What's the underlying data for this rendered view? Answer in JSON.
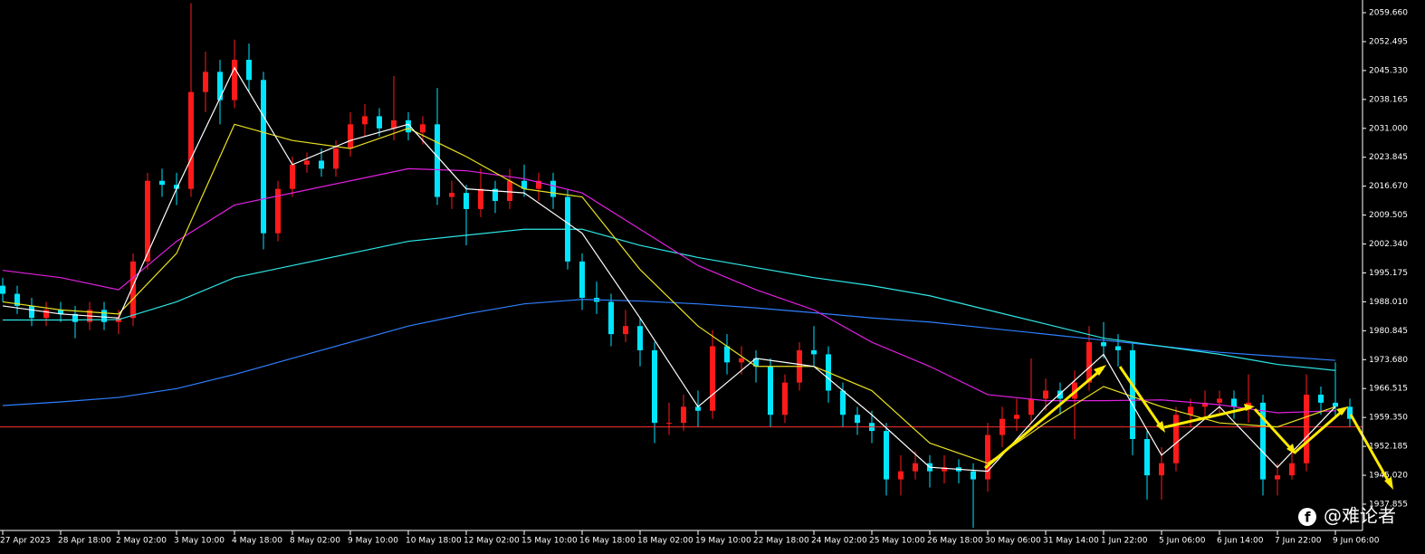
{
  "chart_data": {
    "type": "candlestick",
    "up_color": "#ff1a1a",
    "down_color": "#00e5ff",
    "level_color": "#ff3030",
    "ylim": [
      1931.34,
      2062.81
    ],
    "yticks": [
      {
        "value": 2059.66,
        "label": "2059.660"
      },
      {
        "value": 2052.495,
        "label": "2052.495"
      },
      {
        "value": 2045.33,
        "label": "2045.330"
      },
      {
        "value": 2038.165,
        "label": "2038.165"
      },
      {
        "value": 2031,
        "label": "2031.000"
      },
      {
        "value": 2023.845,
        "label": "2023.845"
      },
      {
        "value": 2016.67,
        "label": "2016.670"
      },
      {
        "value": 2009.505,
        "label": "2009.505"
      },
      {
        "value": 2002.34,
        "label": "2002.340"
      },
      {
        "value": 1995.175,
        "label": "1995.175"
      },
      {
        "value": 1988.01,
        "label": "1988.010"
      },
      {
        "value": 1980.845,
        "label": "1980.845"
      },
      {
        "value": 1973.68,
        "label": "1973.680"
      },
      {
        "value": 1966.515,
        "label": "1966.515"
      },
      {
        "value": 1959.35,
        "label": "1959.350"
      },
      {
        "value": 1952.185,
        "label": "1952.185"
      },
      {
        "value": 1945.02,
        "label": "1945.020"
      },
      {
        "value": 1937.855,
        "label": "1937.855"
      }
    ],
    "xticks": [
      {
        "value": 0,
        "label": "27 Apr 2023"
      },
      {
        "value": 4,
        "label": "28 Apr 18:00"
      },
      {
        "value": 8,
        "label": "2 May 02:00"
      },
      {
        "value": 12,
        "label": "3 May 10:00"
      },
      {
        "value": 16,
        "label": "4 May 18:00"
      },
      {
        "value": 20,
        "label": "8 May 02:00"
      },
      {
        "value": 24,
        "label": "9 May 10:00"
      },
      {
        "value": 28,
        "label": "10 May 18:00"
      },
      {
        "value": 32,
        "label": "12 May 02:00"
      },
      {
        "value": 36,
        "label": "15 May 10:00"
      },
      {
        "value": 40,
        "label": "16 May 18:00"
      },
      {
        "value": 44,
        "label": "18 May 02:00"
      },
      {
        "value": 48,
        "label": "19 May 10:00"
      },
      {
        "value": 52,
        "label": "22 May 18:00"
      },
      {
        "value": 56,
        "label": "24 May 02:00"
      },
      {
        "value": 60,
        "label": "25 May 10:00"
      },
      {
        "value": 64,
        "label": "26 May 18:00"
      },
      {
        "value": 68,
        "label": "30 May 06:00"
      },
      {
        "value": 72,
        "label": "31 May 14:00"
      },
      {
        "value": 76,
        "label": "1 Jun 22:00"
      },
      {
        "value": 80,
        "label": "5 Jun 06:00"
      },
      {
        "value": 84,
        "label": "6 Jun 14:00"
      },
      {
        "value": 88,
        "label": "7 Jun 22:00"
      },
      {
        "value": 92,
        "label": "9 Jun 06:00"
      }
    ],
    "open": [
      1992,
      1990,
      1987,
      1984,
      1986,
      1985,
      1983,
      1986,
      1983,
      1984,
      1998,
      2018,
      2017,
      2016,
      2040,
      2045,
      2038,
      2048,
      2043,
      2005,
      2016,
      2022,
      2023,
      2021,
      2026,
      2032,
      2034,
      2031,
      2033,
      2030,
      2032,
      2014,
      2015,
      2011,
      2016,
      2013,
      2018,
      2016,
      2018,
      2014,
      1998,
      1989,
      1988,
      1980,
      1982,
      1976,
      1958,
      1958,
      1962,
      1961,
      1977,
      1973,
      1974,
      1972,
      1960,
      1968,
      1976,
      1975,
      1966,
      1960,
      1958,
      1956,
      1944,
      1946,
      1948,
      1946,
      1947,
      1946,
      1944,
      1955,
      1959,
      1960,
      1964,
      1966,
      1964,
      1968,
      1978,
      1977,
      1976,
      1954,
      1945,
      1948,
      1960,
      1962,
      1963,
      1964,
      1962,
      1963,
      1944,
      1945,
      1948,
      1965,
      1963,
      1962
    ],
    "high": [
      1994,
      1992,
      1989,
      1988,
      1988,
      1987,
      1988,
      1988,
      1986,
      2000,
      2020,
      2021,
      2020,
      2062,
      2050,
      2048,
      2053,
      2052,
      2045,
      2018,
      2024,
      2025,
      2026,
      2028,
      2035,
      2037,
      2036,
      2044,
      2035,
      2034,
      2041,
      2018,
      2017,
      2021,
      2018,
      2021,
      2022,
      2020,
      2020,
      2016,
      2000,
      1993,
      1990,
      1986,
      1984,
      1978,
      1963,
      1965,
      1966,
      1981,
      1980,
      1977,
      1976,
      1974,
      1970,
      1978,
      1982,
      1977,
      1968,
      1962,
      1961,
      1958,
      1950,
      1951,
      1950,
      1950,
      1949,
      1948,
      1958,
      1962,
      1964,
      1974,
      1969,
      1968,
      1971,
      1982,
      1983,
      1980,
      1978,
      1956,
      1952,
      1962,
      1964,
      1966,
      1966,
      1966,
      1970,
      1965,
      1948,
      1951,
      1970,
      1967,
      1973,
      1964
    ],
    "low": [
      1988,
      1985,
      1982,
      1982,
      1983,
      1979,
      1981,
      1981,
      1980,
      1982,
      1996,
      2014,
      2012,
      2014,
      2035,
      2032,
      2036,
      2040,
      2001,
      2003,
      2014,
      2020,
      2019,
      2019,
      2024,
      2029,
      2029,
      2028,
      2028,
      2027,
      2012,
      2011,
      2002,
      2009,
      2010,
      2011,
      2014,
      2013,
      2011,
      1996,
      1986,
      1985,
      1977,
      1978,
      1972,
      1953,
      1955,
      1956,
      1957,
      1959,
      1970,
      1970,
      1968,
      1957,
      1958,
      1966,
      1972,
      1963,
      1957,
      1955,
      1953,
      1940,
      1940,
      1944,
      1942,
      1943,
      1943,
      1932,
      1941,
      1952,
      1956,
      1958,
      1961,
      1960,
      1954,
      1966,
      1974,
      1972,
      1950,
      1939,
      1939,
      1946,
      1957,
      1959,
      1960,
      1959,
      1958,
      1940,
      1940,
      1944,
      1946,
      1960,
      1959,
      1957
    ],
    "close": [
      1990,
      1987,
      1984,
      1986,
      1985,
      1983,
      1986,
      1983,
      1984,
      1998,
      2018,
      2017,
      2016,
      2040,
      2045,
      2038,
      2048,
      2043,
      2005,
      2016,
      2022,
      2023,
      2021,
      2026,
      2032,
      2034,
      2031,
      2033,
      2030,
      2032,
      2014,
      2015,
      2011,
      2016,
      2013,
      2018,
      2016,
      2018,
      2014,
      1998,
      1989,
      1988,
      1980,
      1982,
      1976,
      1958,
      1958,
      1962,
      1961,
      1977,
      1973,
      1974,
      1972,
      1960,
      1968,
      1976,
      1975,
      1966,
      1960,
      1958,
      1956,
      1944,
      1946,
      1948,
      1946,
      1947,
      1946,
      1944,
      1955,
      1959,
      1960,
      1964,
      1966,
      1964,
      1968,
      1978,
      1977,
      1976,
      1954,
      1945,
      1948,
      1960,
      1962,
      1963,
      1964,
      1962,
      1963,
      1944,
      1945,
      1948,
      1965,
      1963,
      1962,
      1959
    ],
    "level": 1957.0,
    "lines": [
      {
        "color": "#2f7fff",
        "x": [
          0,
          4,
          8,
          12,
          16,
          20,
          24,
          28,
          32,
          36,
          40,
          44,
          48,
          52,
          56,
          60,
          64,
          68,
          72,
          76,
          80,
          84,
          88,
          92
        ],
        "values": [
          1962.3,
          1963.2,
          1964.3,
          1966.5,
          1970,
          1974,
          1978,
          1982,
          1985,
          1987.5,
          1988.6,
          1988.2,
          1987.5,
          1986.5,
          1985.3,
          1984,
          1983,
          1981.5,
          1980,
          1978.5,
          1977,
          1975.5,
          1974.5,
          1973.5
        ]
      },
      {
        "color": "#2ee6e6",
        "x": [
          0,
          4,
          8,
          12,
          16,
          20,
          24,
          28,
          32,
          36,
          40,
          44,
          48,
          52,
          56,
          60,
          64,
          68,
          72,
          76,
          80,
          84,
          88,
          92
        ],
        "values": [
          1983.5,
          1983.5,
          1983.6,
          1988,
          1994,
          1997,
          2000,
          2003,
          2004.5,
          2006,
          2006,
          2002,
          1999,
          1996.5,
          1994,
          1992,
          1989.5,
          1986,
          1982.5,
          1979,
          1977,
          1975,
          1972.5,
          1971
        ]
      },
      {
        "color": "#e020e0",
        "x": [
          0,
          4,
          8,
          12,
          16,
          20,
          24,
          28,
          32,
          36,
          40,
          44,
          48,
          52,
          56,
          60,
          64,
          68,
          72,
          76,
          80,
          84,
          88,
          92
        ],
        "values": [
          1995.8,
          1994,
          1991,
          2003,
          2012,
          2015,
          2018,
          2021,
          2020.5,
          2018.5,
          2015,
          2006,
          1997,
          1991,
          1986,
          1978,
          1972,
          1965,
          1963.5,
          1963.5,
          1963.7,
          1962.5,
          1960.5,
          1961
        ]
      },
      {
        "color": "#e8e020",
        "x": [
          0,
          4,
          8,
          12,
          16,
          20,
          24,
          28,
          32,
          36,
          40,
          44,
          48,
          52,
          56,
          60,
          64,
          68,
          72,
          76,
          80,
          84,
          88,
          92
        ],
        "values": [
          1988,
          1986,
          1985,
          2000,
          2032,
          2028,
          2026,
          2031,
          2024,
          2016,
          2014,
          1996,
          1982,
          1972,
          1972,
          1966,
          1953,
          1948,
          1958,
          1967,
          1962,
          1958,
          1957,
          1962
        ]
      },
      {
        "color": "#ffffff",
        "x": [
          0,
          4,
          8,
          12,
          16,
          20,
          24,
          28,
          32,
          36,
          40,
          44,
          48,
          52,
          56,
          60,
          64,
          68,
          72,
          76,
          80,
          84,
          88,
          92
        ],
        "values": [
          1987,
          1985,
          1984,
          2016,
          2046,
          2022,
          2028,
          2032,
          2016,
          2015,
          2005,
          1984,
          1962,
          1974,
          1972,
          1960,
          1947,
          1946,
          1962,
          1975,
          1950,
          1962,
          1947,
          1962
        ]
      }
    ]
  },
  "watermark": "@难论者"
}
